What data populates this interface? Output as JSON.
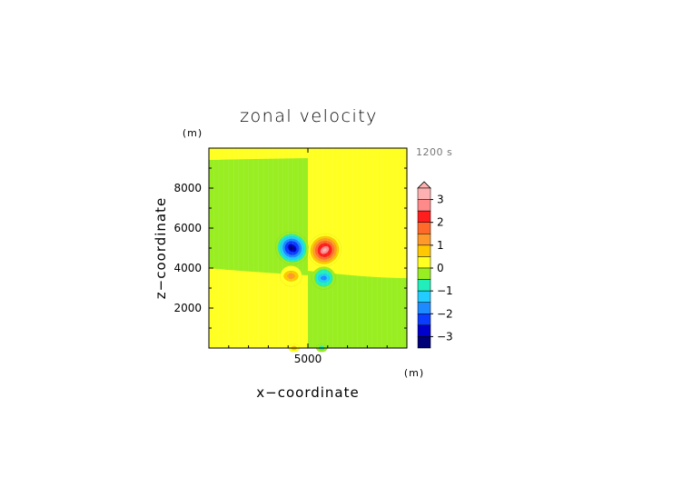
{
  "chart_data": {
    "type": "heatmap",
    "title": "zonal velocity",
    "xlabel": "x−coordinate",
    "ylabel": "z−coordinate",
    "x_unit": "(m)",
    "z_unit": "(m)",
    "time_label": "1200 s",
    "xlim": [
      0,
      10000
    ],
    "ylim": [
      0,
      10000
    ],
    "x_ticks": [
      {
        "value": 5000,
        "label": "5000"
      }
    ],
    "y_ticks": [
      {
        "value": 2000,
        "label": "2000"
      },
      {
        "value": 4000,
        "label": "4000"
      },
      {
        "value": 6000,
        "label": "6000"
      },
      {
        "value": 8000,
        "label": "8000"
      }
    ],
    "colorbar": {
      "ticks": [
        {
          "value": 3,
          "label": "3"
        },
        {
          "value": 2,
          "label": "2"
        },
        {
          "value": 1,
          "label": "1"
        },
        {
          "value": 0,
          "label": "0"
        },
        {
          "value": -1,
          "label": "−1"
        },
        {
          "value": -2,
          "label": "−2"
        },
        {
          "value": -3,
          "label": "−3"
        }
      ],
      "range": [
        -3.5,
        3.5
      ],
      "levels": [
        {
          "from": 3.0,
          "to": 3.5,
          "color": "#ffb0b0"
        },
        {
          "from": 2.5,
          "to": 3.0,
          "color": "#ff8a8a"
        },
        {
          "from": 2.0,
          "to": 2.5,
          "color": "#ff1e1e"
        },
        {
          "from": 1.5,
          "to": 2.0,
          "color": "#ff6a2a"
        },
        {
          "from": 1.0,
          "to": 1.5,
          "color": "#ff9a2a"
        },
        {
          "from": 0.5,
          "to": 1.0,
          "color": "#ffc800"
        },
        {
          "from": 0.0,
          "to": 0.5,
          "color": "#ffff22"
        },
        {
          "from": -0.5,
          "to": 0.0,
          "color": "#99ee22"
        },
        {
          "from": -1.0,
          "to": -0.5,
          "color": "#22eebb"
        },
        {
          "from": -1.5,
          "to": -1.0,
          "color": "#22ccff"
        },
        {
          "from": -2.0,
          "to": -1.5,
          "color": "#1e8aff"
        },
        {
          "from": -2.5,
          "to": -2.0,
          "color": "#0a3cff"
        },
        {
          "from": -3.0,
          "to": -2.5,
          "color": "#0000cc"
        },
        {
          "from": -3.5,
          "to": -3.0,
          "color": "#000077"
        }
      ]
    },
    "field_regions": [
      {
        "name": "upper-left",
        "value": -0.2
      },
      {
        "name": "upper-right",
        "value": 0.2
      },
      {
        "name": "lower-left",
        "value": 0.2
      },
      {
        "name": "lower-right",
        "value": -0.2
      },
      {
        "name": "top-strip",
        "value": 0.2
      }
    ],
    "features": [
      {
        "x": 4200,
        "z": 5000,
        "peak": -3.4,
        "radius": 850
      },
      {
        "x": 5850,
        "z": 4900,
        "peak": 3.3,
        "radius": 850
      },
      {
        "x": 4150,
        "z": 3600,
        "peak": 1.3,
        "radius": 550
      },
      {
        "x": 5800,
        "z": 3500,
        "peak": -1.8,
        "radius": 600
      },
      {
        "x": 4300,
        "z": 0,
        "peak": 0.8,
        "radius": 280
      },
      {
        "x": 5700,
        "z": 0,
        "peak": -0.8,
        "radius": 280
      }
    ]
  }
}
